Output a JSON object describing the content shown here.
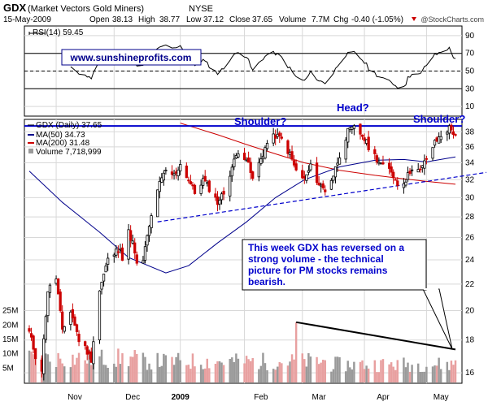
{
  "header": {
    "symbol": "GDX",
    "name": "(Market Vectors Gold Miners)",
    "exchange": "NYSE",
    "date": "15-May-2009",
    "open_label": "Open",
    "open": "38.13",
    "high_label": "High",
    "high": "38.77",
    "low_label": "Low",
    "low": "37.12",
    "close_label": "Close",
    "close": "37.65",
    "volume_label": "Volume",
    "volume": "7.7M",
    "chg_label": "Chg",
    "chg": "-0.40 (-1.05%)",
    "watermark": "@StockCharts.com"
  },
  "rsi_panel": {
    "legend": "RSI(14) 59.45",
    "url_box": "www.sunshineprofits.com",
    "y_ticks": [
      90,
      70,
      50,
      30,
      10
    ],
    "overbought": 70,
    "oversold": 30,
    "ylim": [
      0,
      100
    ]
  },
  "price_panel": {
    "legend_main": "GDX (Daily) 37.65",
    "legend_ma50": "MA(50) 34.73",
    "legend_ma200": "MA(200) 31.48",
    "legend_volume": "Volume 7,718,999",
    "y_ticks": [
      38,
      36,
      34,
      32,
      30,
      28,
      26,
      24,
      22,
      20,
      18,
      16
    ],
    "vol_ticks": [
      "25M",
      "20M",
      "15M",
      "10M",
      "5M"
    ],
    "x_labels": [
      "Nov",
      "Dec",
      "2009",
      "Feb",
      "Mar",
      "Apr",
      "May"
    ],
    "annotations": {
      "left_shoulder": "Shoulder?",
      "head": "Head?",
      "right_shoulder": "Shoulder?"
    },
    "comment_box": "This week GDX has reversed on a strong volume - the technical picture for PM stocks remains bearish.",
    "resistance_level": 38.8
  },
  "colors": {
    "up": "#000000",
    "down": "#cc0000",
    "ma50": "#00008b",
    "ma200": "#cc0000",
    "resistance": "#0000cc",
    "trendline": "#0000cc",
    "vol_up": "#9a9a9a",
    "vol_down": "#e8a0a0",
    "accent_down": "#cc0000"
  },
  "chart_data": {
    "type": "candlestick",
    "y_scale": "log",
    "ylim": [
      15.5,
      39.5
    ],
    "vol_ylim": [
      0,
      30
    ],
    "volume_unit": "M",
    "x_range": [
      "2008-10-21",
      "2009-05-15"
    ],
    "price_keypoints": [
      [
        "2008-10-21",
        18.5
      ],
      [
        "2008-10-24",
        17.0
      ],
      [
        "2008-10-27",
        16.2
      ],
      [
        "2008-10-30",
        21.5
      ],
      [
        "2008-11-03",
        22.5
      ],
      [
        "2008-11-06",
        18.5
      ],
      [
        "2008-11-10",
        20.0
      ],
      [
        "2008-11-14",
        18.0
      ],
      [
        "2008-11-17",
        17.5
      ],
      [
        "2008-11-20",
        16.8
      ],
      [
        "2008-11-24",
        21.5
      ],
      [
        "2008-11-28",
        24.0
      ],
      [
        "2008-12-01",
        24.5
      ],
      [
        "2008-12-04",
        25.2
      ],
      [
        "2008-12-05",
        24.0
      ],
      [
        "2008-12-08",
        26.5
      ],
      [
        "2008-12-10",
        25.5
      ],
      [
        "2008-12-12",
        23.5
      ],
      [
        "2008-12-15",
        24.0
      ],
      [
        "2008-12-18",
        27.0
      ],
      [
        "2008-12-22",
        31.0
      ],
      [
        "2008-12-26",
        33.0
      ],
      [
        "2008-12-30",
        32.5
      ],
      [
        "2009-01-02",
        33.8
      ],
      [
        "2009-01-06",
        32.0
      ],
      [
        "2009-01-09",
        30.5
      ],
      [
        "2009-01-13",
        32.0
      ],
      [
        "2009-01-16",
        31.0
      ],
      [
        "2009-01-20",
        29.5
      ],
      [
        "2009-01-23",
        30.5
      ],
      [
        "2009-01-27",
        33.5
      ],
      [
        "2009-01-30",
        35.5
      ],
      [
        "2009-02-03",
        34.5
      ],
      [
        "2009-02-06",
        32.0
      ],
      [
        "2009-02-10",
        34.5
      ],
      [
        "2009-02-13",
        36.5
      ],
      [
        "2009-02-17",
        37.5
      ],
      [
        "2009-02-20",
        37.0
      ],
      [
        "2009-02-24",
        35.0
      ],
      [
        "2009-02-27",
        33.0
      ],
      [
        "2009-03-03",
        32.0
      ],
      [
        "2009-03-06",
        33.5
      ],
      [
        "2009-03-10",
        31.5
      ],
      [
        "2009-03-13",
        30.8
      ],
      [
        "2009-03-17",
        32.5
      ],
      [
        "2009-03-20",
        35.0
      ],
      [
        "2009-03-24",
        38.0
      ],
      [
        "2009-03-27",
        38.5
      ],
      [
        "2009-03-31",
        37.5
      ],
      [
        "2009-04-03",
        36.0
      ],
      [
        "2009-04-07",
        34.5
      ],
      [
        "2009-04-10",
        33.5
      ],
      [
        "2009-04-14",
        33.0
      ],
      [
        "2009-04-17",
        31.5
      ],
      [
        "2009-04-21",
        32.0
      ],
      [
        "2009-04-24",
        33.5
      ],
      [
        "2009-04-28",
        33.0
      ],
      [
        "2009-05-01",
        34.5
      ],
      [
        "2009-05-05",
        36.5
      ],
      [
        "2009-05-08",
        37.5
      ],
      [
        "2009-05-12",
        38.5
      ],
      [
        "2009-05-15",
        37.65
      ]
    ],
    "ma50_keypoints": [
      [
        "2008-10-21",
        33.0
      ],
      [
        "2008-11-06",
        29.5
      ],
      [
        "2008-11-24",
        26.5
      ],
      [
        "2008-12-08",
        24.2
      ],
      [
        "2008-12-26",
        22.9
      ],
      [
        "2009-01-06",
        23.5
      ],
      [
        "2009-01-20",
        25.5
      ],
      [
        "2009-02-03",
        27.5
      ],
      [
        "2009-02-17",
        30.0
      ],
      [
        "2009-03-03",
        32.0
      ],
      [
        "2009-03-20",
        33.5
      ],
      [
        "2009-04-06",
        34.3
      ],
      [
        "2009-04-20",
        34.4
      ],
      [
        "2009-05-01",
        34.1
      ],
      [
        "2009-05-15",
        34.73
      ]
    ],
    "ma200_keypoints": [
      [
        "2009-01-02",
        39.2
      ],
      [
        "2009-01-20",
        37.6
      ],
      [
        "2009-02-03",
        36.3
      ],
      [
        "2009-02-17",
        35.1
      ],
      [
        "2009-03-03",
        34.0
      ],
      [
        "2009-03-20",
        33.1
      ],
      [
        "2009-04-06",
        32.5
      ],
      [
        "2009-04-20",
        32.1
      ],
      [
        "2009-05-01",
        31.8
      ],
      [
        "2009-05-15",
        31.48
      ]
    ],
    "trendline": [
      [
        "2008-12-22",
        27.5
      ],
      [
        "2009-05-15",
        32.3
      ]
    ],
    "volume_trendline": [
      [
        "2009-02-27",
        21.0
      ],
      [
        "2009-05-15",
        11.5
      ]
    ]
  }
}
